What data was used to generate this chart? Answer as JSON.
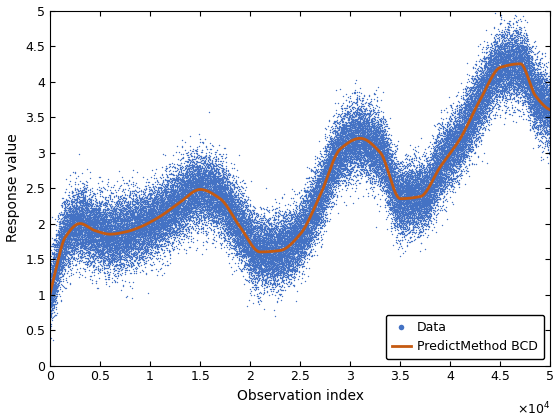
{
  "n_points": 50000,
  "x_max": 50000,
  "noise_std": 0.25,
  "title": "",
  "xlabel": "Observation index",
  "ylabel": "Response value",
  "xlim": [
    0,
    50000
  ],
  "ylim": [
    0,
    5
  ],
  "xticks": [
    0,
    5000,
    10000,
    15000,
    20000,
    25000,
    30000,
    35000,
    40000,
    45000,
    50000
  ],
  "yticks": [
    0,
    0.5,
    1.0,
    1.5,
    2.0,
    2.5,
    3.0,
    3.5,
    4.0,
    4.5,
    5.0
  ],
  "scatter_color": "#4472C4",
  "line_color": "#C55A11",
  "scatter_size": 1.0,
  "line_width": 2.0,
  "legend_labels": [
    "Data",
    "PredictMethod BCD"
  ],
  "legend_loc": "lower right",
  "background_color": "#ffffff",
  "seed": 42,
  "trend_xp": [
    0.0,
    0.01,
    0.03,
    0.06,
    0.09,
    0.12,
    0.15,
    0.18,
    0.22,
    0.26,
    0.3,
    0.34,
    0.38,
    0.42,
    0.46,
    0.5,
    0.54,
    0.58,
    0.62,
    0.66,
    0.7,
    0.74,
    0.78,
    0.82,
    0.86,
    0.9,
    0.94,
    0.97,
    1.0
  ],
  "trend_yp": [
    1.0,
    1.3,
    1.8,
    2.0,
    1.9,
    1.85,
    1.88,
    1.95,
    2.1,
    2.3,
    2.48,
    2.35,
    1.95,
    1.6,
    1.62,
    1.85,
    2.4,
    3.05,
    3.2,
    3.0,
    2.35,
    2.38,
    2.8,
    3.2,
    3.75,
    4.2,
    4.25,
    3.8,
    3.6
  ]
}
